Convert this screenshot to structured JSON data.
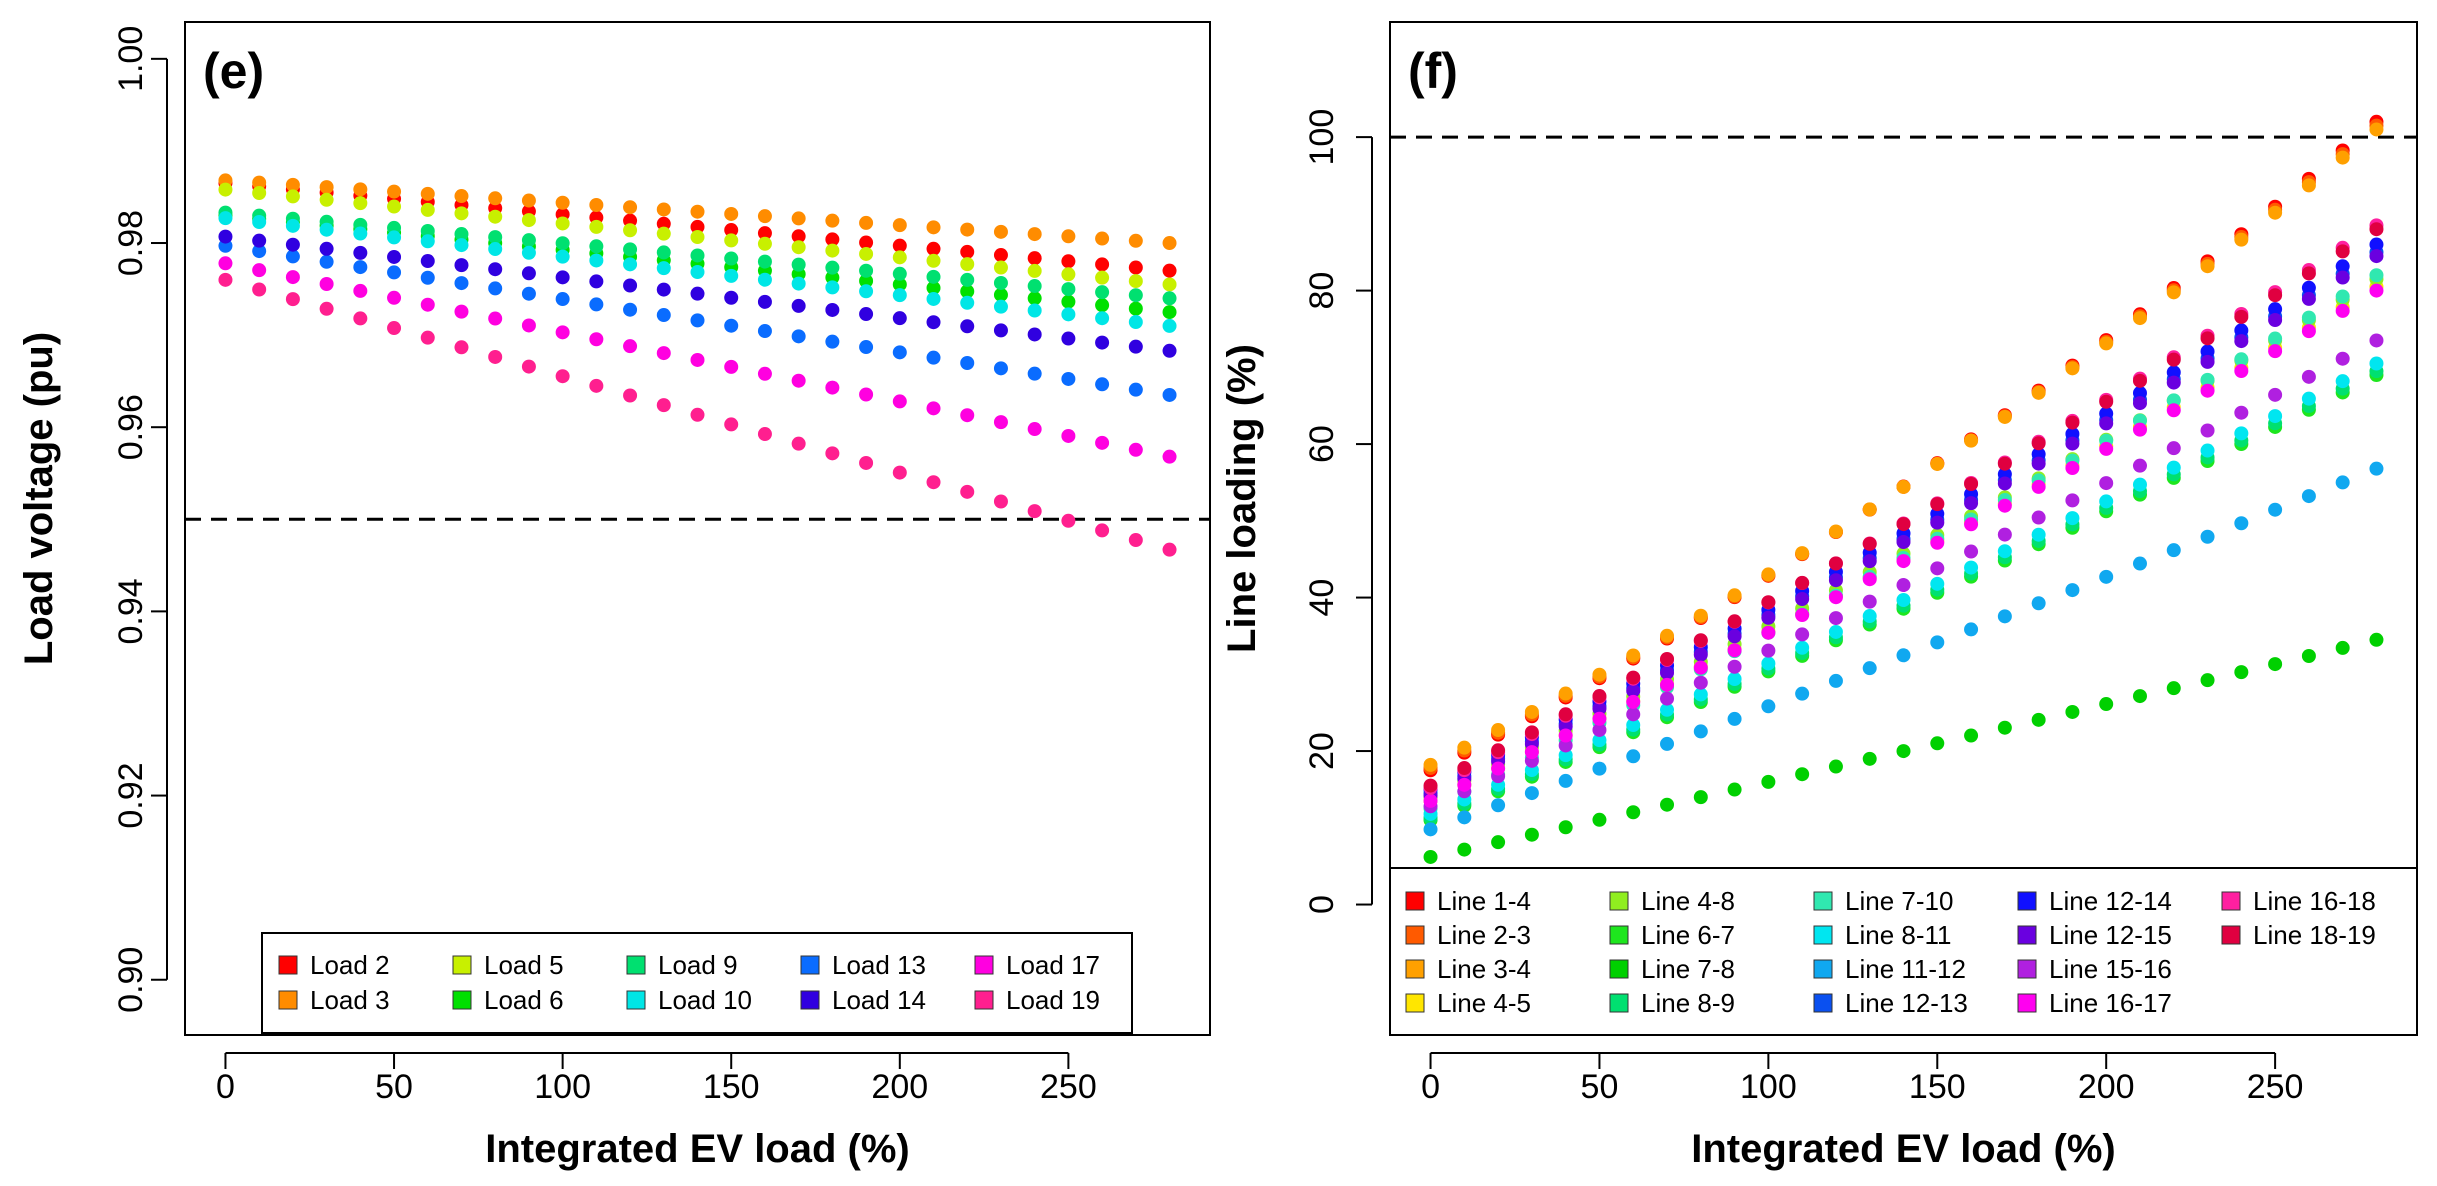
{
  "chart_data": [
    {
      "type": "scatter",
      "panel_tag": "(e)",
      "title": "",
      "xlabel": "Integrated EV load (%)",
      "ylabel": "Load voltage (pu)",
      "xlim": [
        -12,
        292
      ],
      "ylim": [
        0.894,
        1.004
      ],
      "xticks": [
        0,
        50,
        100,
        150,
        200,
        250
      ],
      "xtick_labels": [
        "0",
        "50",
        "100",
        "150",
        "200",
        "250"
      ],
      "yticks": [
        0.9,
        0.92,
        0.94,
        0.96,
        0.98,
        1.0
      ],
      "ytick_labels": [
        "0.90",
        "0.92",
        "0.94",
        "0.96",
        "0.98",
        "1.00"
      ],
      "reference_line": 0.95,
      "x": [
        0,
        10,
        20,
        30,
        40,
        50,
        60,
        70,
        80,
        90,
        100,
        110,
        120,
        130,
        140,
        150,
        160,
        170,
        180,
        190,
        200,
        210,
        220,
        230,
        240,
        250,
        260,
        270,
        280
      ],
      "legend_position": "bottom-right",
      "legend_columns": 5,
      "series": [
        {
          "name": "Load 2",
          "color": "#ff0000",
          "start": 0.9865,
          "end": 0.977
        },
        {
          "name": "Load 3",
          "color": "#ff8c00",
          "start": 0.9868,
          "end": 0.98
        },
        {
          "name": "Load 5",
          "color": "#c8f000",
          "start": 0.9858,
          "end": 0.9755
        },
        {
          "name": "Load 6",
          "color": "#00e000",
          "start": 0.983,
          "end": 0.9725
        },
        {
          "name": "Load 9",
          "color": "#00e070",
          "start": 0.9833,
          "end": 0.974
        },
        {
          "name": "Load 10",
          "color": "#00e6e6",
          "start": 0.9827,
          "end": 0.971
        },
        {
          "name": "Load 13",
          "color": "#0a6cff",
          "start": 0.9797,
          "end": 0.9635
        },
        {
          "name": "Load 14",
          "color": "#3000e0",
          "start": 0.9807,
          "end": 0.9683
        },
        {
          "name": "Load 17",
          "color": "#ff00e0",
          "start": 0.9778,
          "end": 0.9568
        },
        {
          "name": "Load 19",
          "color": "#ff1f8f",
          "start": 0.976,
          "end": 0.9467
        }
      ]
    },
    {
      "type": "scatter",
      "panel_tag": "(f)",
      "title": "",
      "xlabel": "Integrated EV load (%)",
      "ylabel": "Line loading (%)",
      "xlim": [
        -12,
        292
      ],
      "ylim": [
        -17,
        115
      ],
      "xticks": [
        0,
        50,
        100,
        150,
        200,
        250
      ],
      "xtick_labels": [
        "0",
        "50",
        "100",
        "150",
        "200",
        "250"
      ],
      "yticks": [
        0,
        20,
        40,
        60,
        80,
        100
      ],
      "ytick_labels": [
        "0",
        "20",
        "40",
        "60",
        "80",
        "100"
      ],
      "reference_line": 100,
      "x": [
        0,
        10,
        20,
        30,
        40,
        50,
        60,
        70,
        80,
        90,
        100,
        110,
        120,
        130,
        140,
        150,
        160,
        170,
        180,
        190,
        200,
        210,
        220,
        230,
        240,
        250,
        260,
        270,
        280
      ],
      "legend_position": "bottom",
      "legend_columns": 5,
      "series": [
        {
          "name": "Line 1-4",
          "color": "#ff0000",
          "start": 17.5,
          "end": 102.0,
          "curve": 0.25
        },
        {
          "name": "Line 2-3",
          "color": "#ff5a00",
          "start": 17.8,
          "end": 101.5,
          "curve": 0.25
        },
        {
          "name": "Line 3-4",
          "color": "#ffa000",
          "start": 18.2,
          "end": 101.0,
          "curve": 0.25
        },
        {
          "name": "Line 4-5",
          "color": "#ffe600",
          "start": 13.5,
          "end": 80.5,
          "curve": 0.12
        },
        {
          "name": "Line 4-8",
          "color": "#90ee20",
          "start": 14.0,
          "end": 81.5,
          "curve": 0.12
        },
        {
          "name": "Line 6-7",
          "color": "#1ee61e",
          "start": 11.0,
          "end": 69.0,
          "curve": 0.1
        },
        {
          "name": "Line 7-8",
          "color": "#00d000",
          "start": 6.2,
          "end": 34.5,
          "curve": 0.05
        },
        {
          "name": "Line 8-9",
          "color": "#00e070",
          "start": 11.3,
          "end": 69.5,
          "curve": 0.1
        },
        {
          "name": "Line 7-10",
          "color": "#30e8b0",
          "start": 12.5,
          "end": 82.0,
          "curve": 0.12
        },
        {
          "name": "Line 8-11",
          "color": "#00e6f0",
          "start": 11.8,
          "end": 70.5,
          "curve": 0.1
        },
        {
          "name": "Line 11-12",
          "color": "#10a8f0",
          "start": 9.8,
          "end": 56.8,
          "curve": 0.07
        },
        {
          "name": "Line 12-13",
          "color": "#0a50f0",
          "start": 14.5,
          "end": 85.0,
          "curve": 0.12
        },
        {
          "name": "Line 12-14",
          "color": "#1010ff",
          "start": 15.0,
          "end": 86.0,
          "curve": 0.12
        },
        {
          "name": "Line 12-15",
          "color": "#6a00e0",
          "start": 14.2,
          "end": 84.5,
          "curve": 0.12
        },
        {
          "name": "Line 15-16",
          "color": "#b020e0",
          "start": 12.8,
          "end": 73.5,
          "curve": 0.1
        },
        {
          "name": "Line 16-17",
          "color": "#ff00f0",
          "start": 13.5,
          "end": 80.0,
          "curve": 0.12
        },
        {
          "name": "Line 16-18",
          "color": "#ff20a0",
          "start": 15.2,
          "end": 88.5,
          "curve": 0.12
        },
        {
          "name": "Line 18-19",
          "color": "#e00040",
          "start": 15.5,
          "end": 88.0,
          "curve": 0.12
        }
      ]
    }
  ]
}
